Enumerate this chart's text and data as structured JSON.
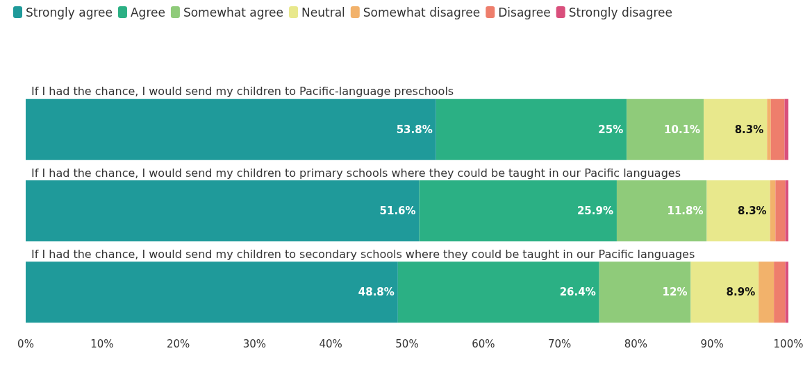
{
  "chart_data": {
    "type": "bar",
    "orientation": "horizontal",
    "stacked": true,
    "legend": "top left",
    "grid": false,
    "categories": [
      "If I had the chance, I would send my children to Pacific-language preschools",
      "If I had the chance, I would send my children to primary schools where they could be taught in our Pacific languages",
      "If I had the chance, I would send my children to secondary schools where they could be taught in our Pacific languages"
    ],
    "series": [
      {
        "name": "Strongly agree",
        "color": "#1f9a9a",
        "values": [
          53.8,
          51.6,
          48.8
        ],
        "value_labels": [
          "53.8%",
          "51.6%",
          "48.8%"
        ]
      },
      {
        "name": "Agree",
        "color": "#2bb084",
        "values": [
          25,
          25.9,
          26.4
        ],
        "value_labels": [
          "25%",
          "25.9%",
          "26.4%"
        ]
      },
      {
        "name": "Somewhat agree",
        "color": "#8fcb7a",
        "values": [
          10.1,
          11.8,
          12
        ],
        "value_labels": [
          "10.1%",
          "11.8%",
          "12%"
        ]
      },
      {
        "name": "Neutral",
        "color": "#e8e88c",
        "values": [
          8.3,
          8.3,
          8.9
        ],
        "value_labels": [
          "8.3%",
          "8.3%",
          "8.9%"
        ]
      },
      {
        "name": "Somewhat disagree",
        "color": "#f2b26b",
        "values": [
          0.5,
          0.7,
          2.0
        ],
        "value_labels": [
          null,
          null,
          null
        ]
      },
      {
        "name": "Disagree",
        "color": "#ee7e6c",
        "values": [
          1.8,
          1.3,
          1.5
        ],
        "value_labels": [
          null,
          null,
          null
        ]
      },
      {
        "name": "Strongly disagree",
        "color": "#d94f7c",
        "values": [
          0.5,
          0.4,
          0.4
        ],
        "value_labels": [
          null,
          null,
          null
        ]
      }
    ],
    "xlim": [
      0,
      100
    ],
    "xticks": [
      {
        "value": 0,
        "label": "0%"
      },
      {
        "value": 10,
        "label": "10%"
      },
      {
        "value": 20,
        "label": "20%"
      },
      {
        "value": 30,
        "label": "30%"
      },
      {
        "value": 40,
        "label": "40%"
      },
      {
        "value": 50,
        "label": "50%"
      },
      {
        "value": 60,
        "label": "60%"
      },
      {
        "value": 70,
        "label": "70%"
      },
      {
        "value": 80,
        "label": "80%"
      },
      {
        "value": 90,
        "label": "90%"
      },
      {
        "value": 100,
        "label": "100%"
      }
    ]
  }
}
